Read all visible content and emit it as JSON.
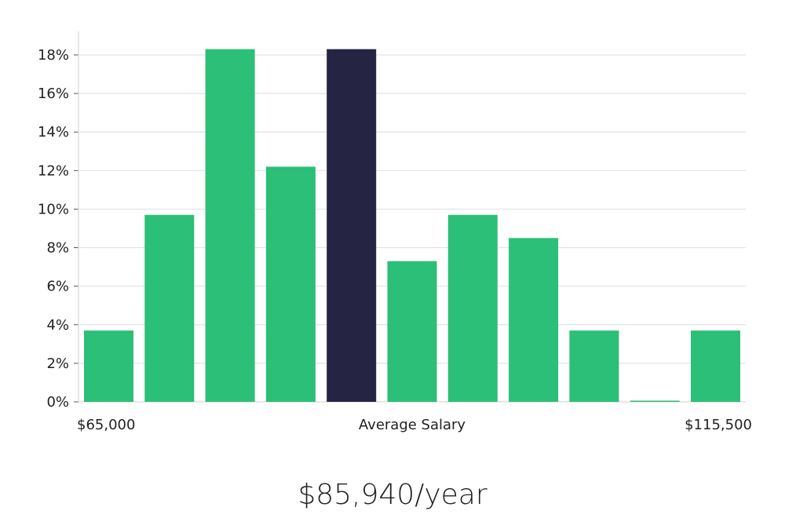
{
  "chart_data": {
    "type": "bar",
    "ylabel_format": "percent",
    "values": [
      3.7,
      9.7,
      18.3,
      12.2,
      18.3,
      7.3,
      9.7,
      8.5,
      3.7,
      0.0,
      3.7
    ],
    "highlight_index": 4,
    "ylim": [
      0,
      18
    ],
    "yticks": [
      0,
      2,
      4,
      6,
      8,
      10,
      12,
      14,
      16,
      18
    ],
    "ytick_labels": [
      "0%",
      "2%",
      "4%",
      "6%",
      "8%",
      "10%",
      "12%",
      "14%",
      "16%",
      "18%"
    ],
    "x_axis_labels": {
      "left": "$65,000",
      "center": "Average Salary",
      "right": "$115,500"
    },
    "grid": true,
    "colors": {
      "bar": "#2bbf77",
      "highlight": "#262443",
      "grid": "#e3e3e3",
      "axis": "#d9d9d9"
    }
  },
  "headline": "$85,940/year"
}
